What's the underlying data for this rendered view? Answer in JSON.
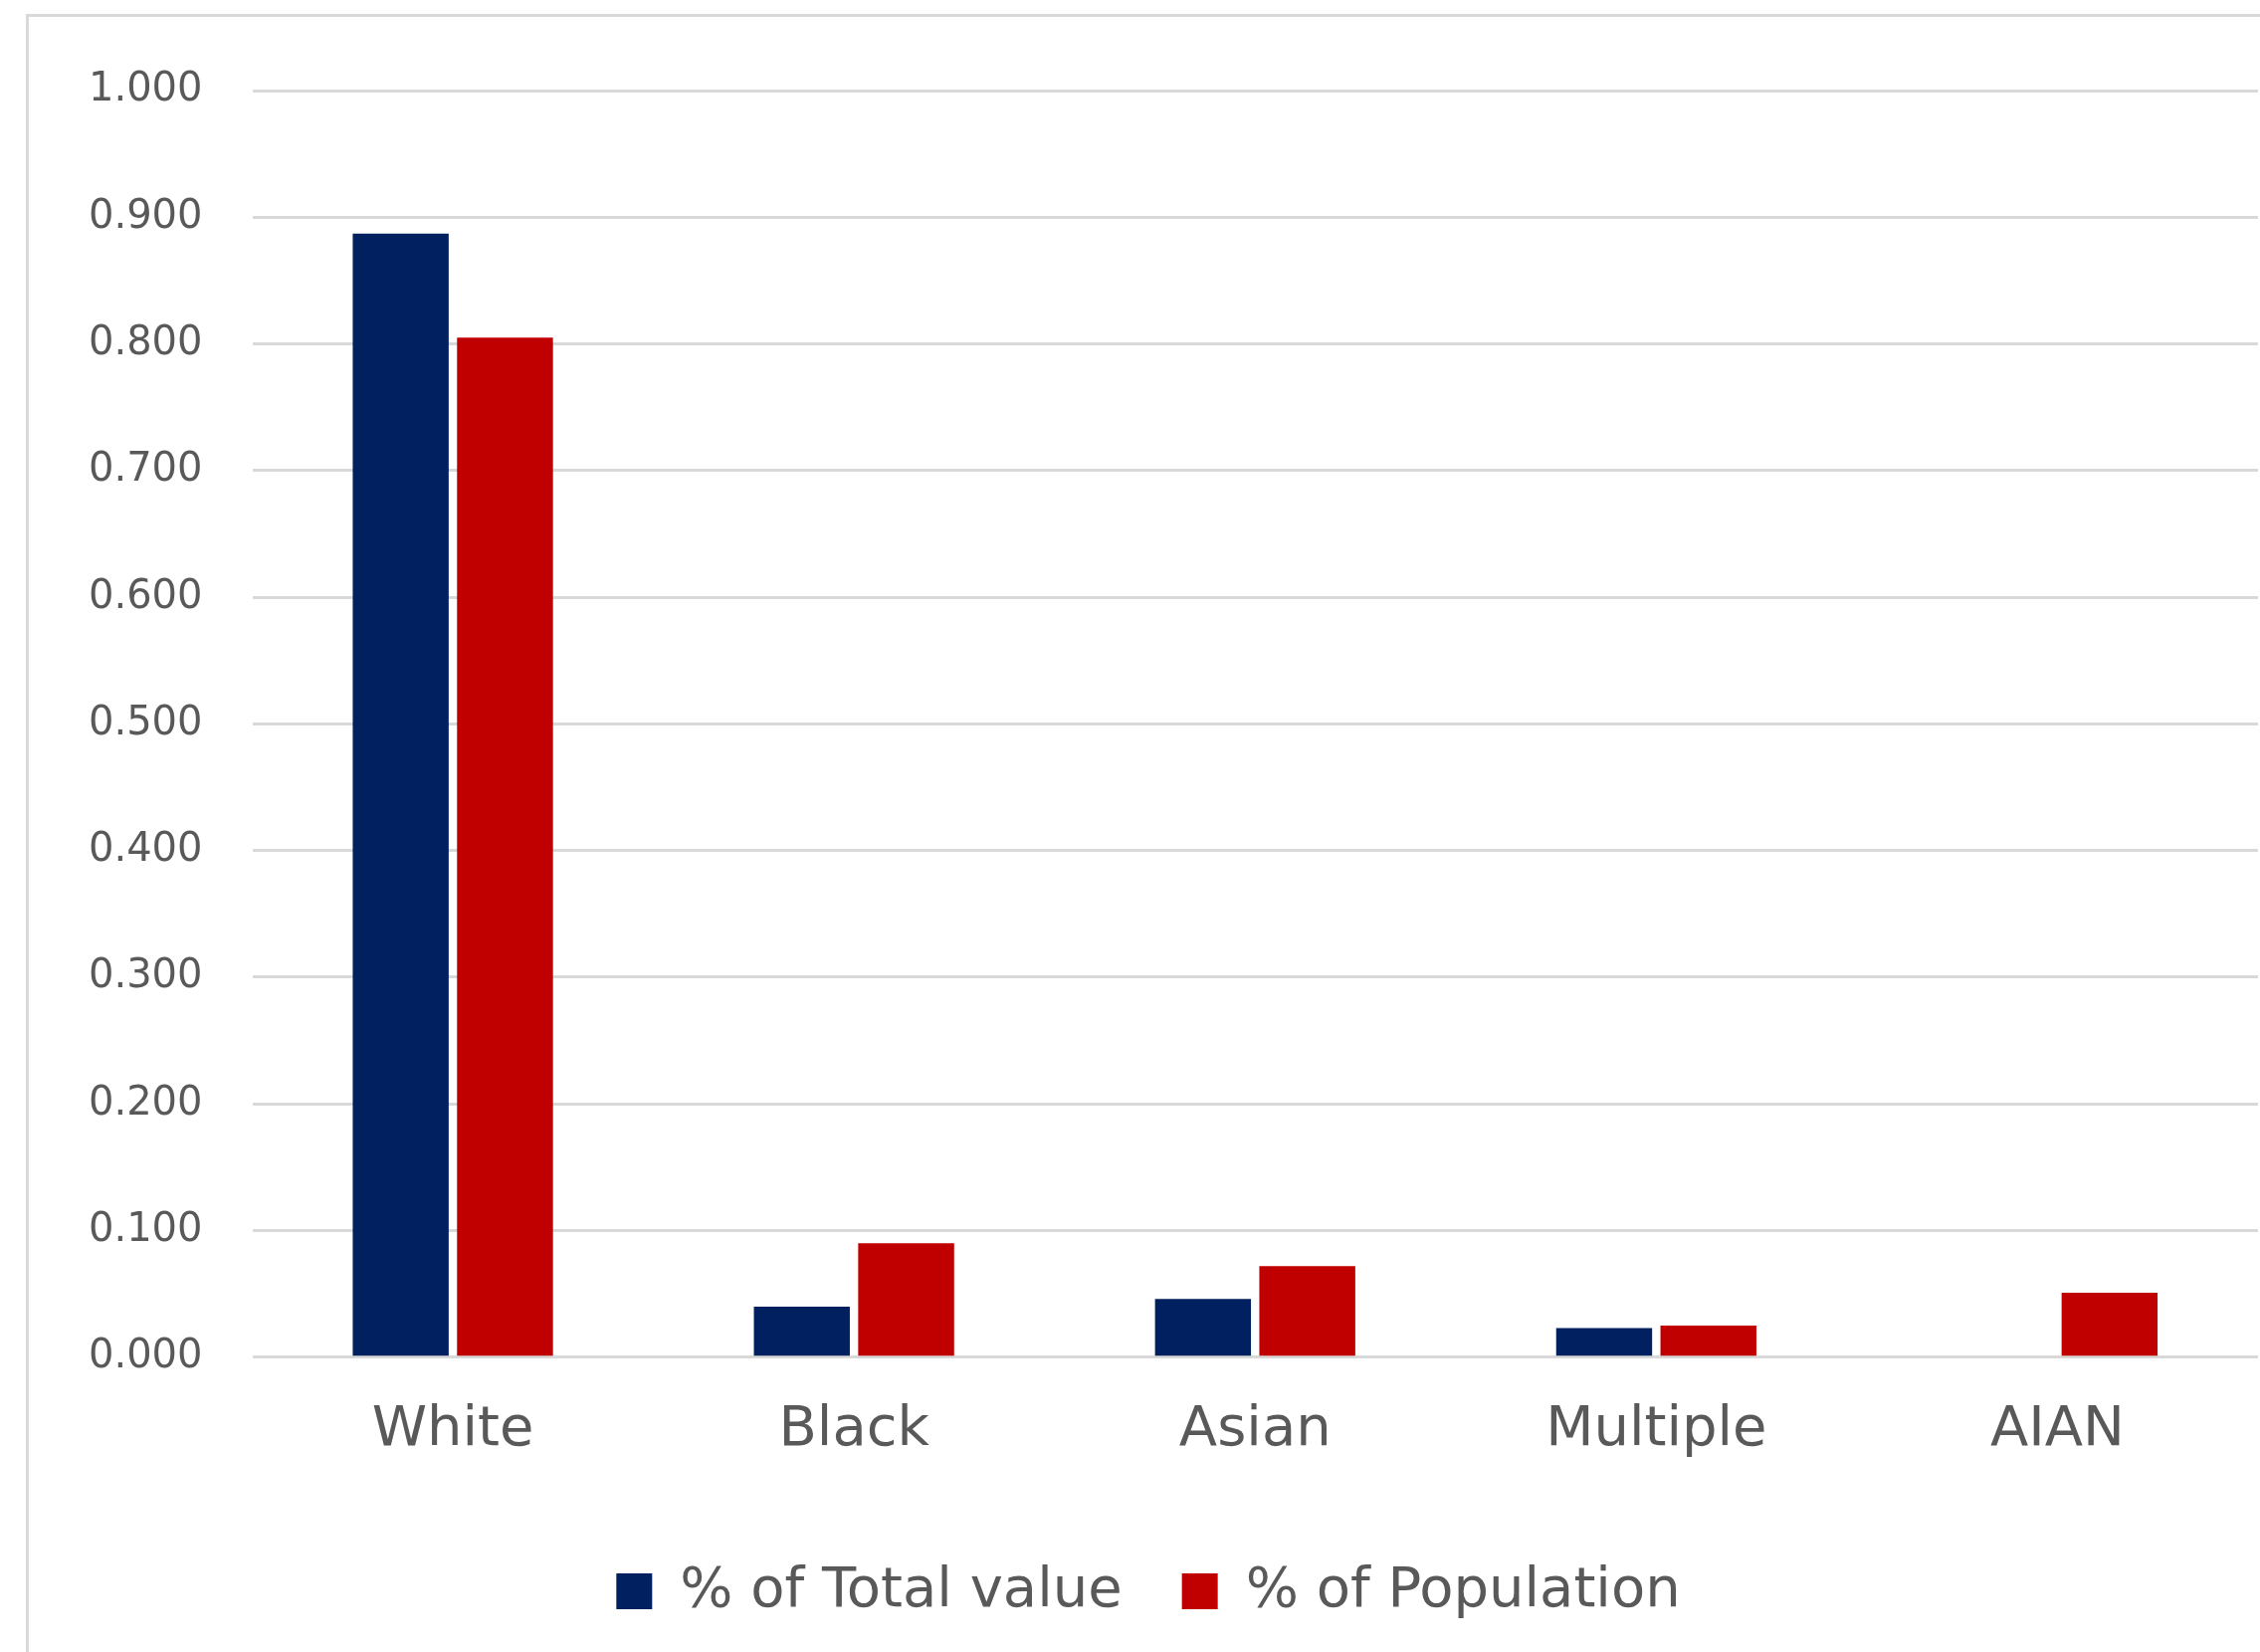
{
  "chart_data": {
    "type": "bar",
    "categories": [
      "White",
      "Black",
      "Asian",
      "Multiple",
      "AIAN"
    ],
    "series": [
      {
        "name": "% of Total value",
        "color": "#002060",
        "values": [
          0.887,
          0.04,
          0.046,
          0.023,
          null
        ]
      },
      {
        "name": "% of Population",
        "color": "#c00000",
        "values": [
          0.805,
          0.09,
          0.072,
          0.025,
          0.051
        ]
      }
    ],
    "ylim": [
      0,
      1
    ],
    "yticks": [
      {
        "value": 0,
        "label": "0.000"
      },
      {
        "value": 0.1,
        "label": "0.100"
      },
      {
        "value": 0.2,
        "label": "0.200"
      },
      {
        "value": 0.3,
        "label": "0.300"
      },
      {
        "value": 0.4,
        "label": "0.400"
      },
      {
        "value": 0.5,
        "label": "0.500"
      },
      {
        "value": 0.6,
        "label": "0.600"
      },
      {
        "value": 0.7,
        "label": "0.700"
      },
      {
        "value": 0.8,
        "label": "0.800"
      },
      {
        "value": 0.9,
        "label": "0.900"
      },
      {
        "value": 1,
        "label": "1.000"
      }
    ],
    "grid": "y",
    "legend": "bottom"
  }
}
